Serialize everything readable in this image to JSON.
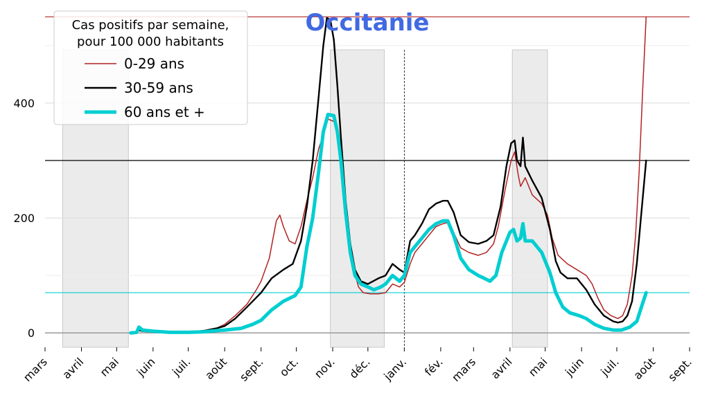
{
  "chart_data": {
    "type": "line",
    "title": "Occitanie",
    "title_color": "#4169e1",
    "legend": {
      "title_line1": "Cas positifs par semaine,",
      "title_line2": "pour 100 000 habitants",
      "placement": "top-left"
    },
    "xlabel": "",
    "ylabel": "",
    "x_range": [
      "2020-03-01",
      "2021-09-01"
    ],
    "ylim": [
      -25,
      560
    ],
    "y_ticks": [
      0,
      200,
      400
    ],
    "x_ticks": [
      {
        "date": "2020-03-01",
        "label": "mars"
      },
      {
        "date": "2020-04-01",
        "label": "avril"
      },
      {
        "date": "2020-05-01",
        "label": "mai"
      },
      {
        "date": "2020-06-01",
        "label": "juin"
      },
      {
        "date": "2020-07-01",
        "label": "juil."
      },
      {
        "date": "2020-08-01",
        "label": "août"
      },
      {
        "date": "2020-09-01",
        "label": "sept."
      },
      {
        "date": "2020-10-01",
        "label": "oct."
      },
      {
        "date": "2020-11-01",
        "label": "nov."
      },
      {
        "date": "2020-12-01",
        "label": "déc."
      },
      {
        "date": "2021-01-01",
        "label": "janv."
      },
      {
        "date": "2021-02-01",
        "label": "fév."
      },
      {
        "date": "2021-03-01",
        "label": "mars"
      },
      {
        "date": "2021-04-01",
        "label": "avril"
      },
      {
        "date": "2021-05-01",
        "label": "mai"
      },
      {
        "date": "2021-06-01",
        "label": "juin"
      },
      {
        "date": "2021-07-01",
        "label": "juil."
      },
      {
        "date": "2021-08-01",
        "label": "août"
      },
      {
        "date": "2021-09-01",
        "label": "sept."
      }
    ],
    "shaded_periods": [
      {
        "start": "2020-03-16",
        "end": "2020-05-11"
      },
      {
        "start": "2020-10-30",
        "end": "2020-12-15"
      },
      {
        "start": "2021-04-03",
        "end": "2021-05-03"
      }
    ],
    "vertical_marker": "2021-01-01",
    "reference_lines": [
      {
        "value": 550,
        "color": "#b22222"
      },
      {
        "value": 300,
        "color": "#000000"
      },
      {
        "value": 70,
        "color": "#00ced1"
      }
    ],
    "series": [
      {
        "name": "0-29 ans",
        "color": "#b22222",
        "points": [
          [
            "2020-05-13",
            0
          ],
          [
            "2020-05-18",
            1
          ],
          [
            "2020-05-20",
            7
          ],
          [
            "2020-05-23",
            3
          ],
          [
            "2020-06-01",
            2
          ],
          [
            "2020-06-15",
            1
          ],
          [
            "2020-07-01",
            1
          ],
          [
            "2020-07-15",
            3
          ],
          [
            "2020-07-25",
            8
          ],
          [
            "2020-08-01",
            15
          ],
          [
            "2020-08-10",
            30
          ],
          [
            "2020-08-20",
            50
          ],
          [
            "2020-08-28",
            75
          ],
          [
            "2020-09-01",
            90
          ],
          [
            "2020-09-08",
            130
          ],
          [
            "2020-09-14",
            195
          ],
          [
            "2020-09-17",
            205
          ],
          [
            "2020-09-20",
            185
          ],
          [
            "2020-09-25",
            160
          ],
          [
            "2020-09-30",
            155
          ],
          [
            "2020-10-05",
            185
          ],
          [
            "2020-10-10",
            230
          ],
          [
            "2020-10-15",
            270
          ],
          [
            "2020-10-20",
            320
          ],
          [
            "2020-10-25",
            350
          ],
          [
            "2020-10-28",
            372
          ],
          [
            "2020-11-02",
            368
          ],
          [
            "2020-11-05",
            345
          ],
          [
            "2020-11-08",
            300
          ],
          [
            "2020-11-12",
            230
          ],
          [
            "2020-11-16",
            160
          ],
          [
            "2020-11-19",
            110
          ],
          [
            "2020-11-23",
            80
          ],
          [
            "2020-11-27",
            70
          ],
          [
            "2020-12-03",
            68
          ],
          [
            "2020-12-10",
            68
          ],
          [
            "2020-12-16",
            70
          ],
          [
            "2020-12-22",
            85
          ],
          [
            "2020-12-28",
            80
          ],
          [
            "2021-01-01",
            88
          ],
          [
            "2021-01-06",
            120
          ],
          [
            "2021-01-10",
            140
          ],
          [
            "2021-01-16",
            155
          ],
          [
            "2021-01-22",
            170
          ],
          [
            "2021-01-28",
            185
          ],
          [
            "2021-02-03",
            190
          ],
          [
            "2021-02-07",
            192
          ],
          [
            "2021-02-12",
            175
          ],
          [
            "2021-02-18",
            148
          ],
          [
            "2021-02-25",
            140
          ],
          [
            "2021-03-05",
            135
          ],
          [
            "2021-03-12",
            140
          ],
          [
            "2021-03-18",
            155
          ],
          [
            "2021-03-22",
            185
          ],
          [
            "2021-03-28",
            250
          ],
          [
            "2021-04-02",
            300
          ],
          [
            "2021-04-05",
            315
          ],
          [
            "2021-04-08",
            275
          ],
          [
            "2021-04-10",
            255
          ],
          [
            "2021-04-14",
            270
          ],
          [
            "2021-04-20",
            240
          ],
          [
            "2021-04-28",
            225
          ],
          [
            "2021-05-03",
            205
          ],
          [
            "2021-05-07",
            165
          ],
          [
            "2021-05-12",
            135
          ],
          [
            "2021-05-20",
            120
          ],
          [
            "2021-05-28",
            110
          ],
          [
            "2021-06-05",
            100
          ],
          [
            "2021-06-10",
            85
          ],
          [
            "2021-06-15",
            60
          ],
          [
            "2021-06-20",
            40
          ],
          [
            "2021-06-26",
            30
          ],
          [
            "2021-07-02",
            25
          ],
          [
            "2021-07-06",
            30
          ],
          [
            "2021-07-10",
            50
          ],
          [
            "2021-07-14",
            100
          ],
          [
            "2021-07-17",
            170
          ],
          [
            "2021-07-20",
            280
          ],
          [
            "2021-07-23",
            420
          ],
          [
            "2021-07-26",
            550
          ]
        ]
      },
      {
        "name": "30-59 ans",
        "color": "#000000",
        "points": [
          [
            "2020-05-13",
            0
          ],
          [
            "2020-05-18",
            1
          ],
          [
            "2020-05-20",
            5
          ],
          [
            "2020-05-23",
            3
          ],
          [
            "2020-06-01",
            2
          ],
          [
            "2020-06-15",
            1
          ],
          [
            "2020-07-01",
            1
          ],
          [
            "2020-07-15",
            4
          ],
          [
            "2020-07-25",
            8
          ],
          [
            "2020-08-01",
            12
          ],
          [
            "2020-08-10",
            25
          ],
          [
            "2020-08-20",
            45
          ],
          [
            "2020-09-01",
            70
          ],
          [
            "2020-09-10",
            95
          ],
          [
            "2020-09-20",
            110
          ],
          [
            "2020-09-28",
            120
          ],
          [
            "2020-10-05",
            160
          ],
          [
            "2020-10-10",
            220
          ],
          [
            "2020-10-15",
            300
          ],
          [
            "2020-10-20",
            410
          ],
          [
            "2020-10-24",
            500
          ],
          [
            "2020-10-27",
            548
          ],
          [
            "2020-10-30",
            545
          ],
          [
            "2020-11-02",
            510
          ],
          [
            "2020-11-05",
            430
          ],
          [
            "2020-11-08",
            340
          ],
          [
            "2020-11-12",
            230
          ],
          [
            "2020-11-16",
            155
          ],
          [
            "2020-11-20",
            110
          ],
          [
            "2020-11-25",
            90
          ],
          [
            "2020-12-01",
            85
          ],
          [
            "2020-12-10",
            95
          ],
          [
            "2020-12-16",
            100
          ],
          [
            "2020-12-22",
            120
          ],
          [
            "2020-12-28",
            110
          ],
          [
            "2021-01-01",
            105
          ],
          [
            "2021-01-06",
            160
          ],
          [
            "2021-01-10",
            170
          ],
          [
            "2021-01-16",
            190
          ],
          [
            "2021-01-22",
            215
          ],
          [
            "2021-01-28",
            225
          ],
          [
            "2021-02-03",
            230
          ],
          [
            "2021-02-07",
            230
          ],
          [
            "2021-02-12",
            210
          ],
          [
            "2021-02-18",
            170
          ],
          [
            "2021-02-25",
            158
          ],
          [
            "2021-03-05",
            155
          ],
          [
            "2021-03-12",
            160
          ],
          [
            "2021-03-18",
            170
          ],
          [
            "2021-03-24",
            220
          ],
          [
            "2021-03-29",
            290
          ],
          [
            "2021-04-02",
            330
          ],
          [
            "2021-04-05",
            335
          ],
          [
            "2021-04-07",
            300
          ],
          [
            "2021-04-10",
            290
          ],
          [
            "2021-04-12",
            340
          ],
          [
            "2021-04-14",
            290
          ],
          [
            "2021-04-20",
            265
          ],
          [
            "2021-04-28",
            235
          ],
          [
            "2021-05-05",
            180
          ],
          [
            "2021-05-10",
            125
          ],
          [
            "2021-05-14",
            105
          ],
          [
            "2021-05-20",
            95
          ],
          [
            "2021-05-28",
            95
          ],
          [
            "2021-06-05",
            75
          ],
          [
            "2021-06-12",
            50
          ],
          [
            "2021-06-20",
            30
          ],
          [
            "2021-06-28",
            20
          ],
          [
            "2021-07-02",
            18
          ],
          [
            "2021-07-06",
            20
          ],
          [
            "2021-07-10",
            30
          ],
          [
            "2021-07-14",
            55
          ],
          [
            "2021-07-18",
            120
          ],
          [
            "2021-07-22",
            210
          ],
          [
            "2021-07-26",
            300
          ]
        ]
      },
      {
        "name": "60 ans et +",
        "color": "#00ced1",
        "points": [
          [
            "2020-05-13",
            0
          ],
          [
            "2020-05-18",
            1
          ],
          [
            "2020-05-20",
            10
          ],
          [
            "2020-05-23",
            5
          ],
          [
            "2020-06-01",
            3
          ],
          [
            "2020-06-15",
            1
          ],
          [
            "2020-07-01",
            1
          ],
          [
            "2020-07-15",
            2
          ],
          [
            "2020-07-25",
            4
          ],
          [
            "2020-08-01",
            5
          ],
          [
            "2020-08-15",
            8
          ],
          [
            "2020-08-25",
            15
          ],
          [
            "2020-09-01",
            22
          ],
          [
            "2020-09-10",
            40
          ],
          [
            "2020-09-20",
            55
          ],
          [
            "2020-09-30",
            65
          ],
          [
            "2020-10-05",
            80
          ],
          [
            "2020-10-10",
            150
          ],
          [
            "2020-10-15",
            200
          ],
          [
            "2020-10-20",
            280
          ],
          [
            "2020-10-24",
            350
          ],
          [
            "2020-10-28",
            380
          ],
          [
            "2020-11-02",
            378
          ],
          [
            "2020-11-05",
            350
          ],
          [
            "2020-11-08",
            300
          ],
          [
            "2020-11-12",
            210
          ],
          [
            "2020-11-16",
            140
          ],
          [
            "2020-11-20",
            100
          ],
          [
            "2020-11-25",
            85
          ],
          [
            "2020-12-01",
            80
          ],
          [
            "2020-12-06",
            75
          ],
          [
            "2020-12-12",
            80
          ],
          [
            "2020-12-16",
            85
          ],
          [
            "2020-12-22",
            100
          ],
          [
            "2020-12-28",
            90
          ],
          [
            "2021-01-01",
            100
          ],
          [
            "2021-01-06",
            140
          ],
          [
            "2021-01-10",
            150
          ],
          [
            "2021-01-16",
            165
          ],
          [
            "2021-01-22",
            180
          ],
          [
            "2021-01-28",
            190
          ],
          [
            "2021-02-03",
            195
          ],
          [
            "2021-02-07",
            195
          ],
          [
            "2021-02-12",
            170
          ],
          [
            "2021-02-18",
            130
          ],
          [
            "2021-02-25",
            110
          ],
          [
            "2021-03-05",
            100
          ],
          [
            "2021-03-10",
            95
          ],
          [
            "2021-03-15",
            90
          ],
          [
            "2021-03-20",
            100
          ],
          [
            "2021-03-25",
            140
          ],
          [
            "2021-04-01",
            175
          ],
          [
            "2021-04-04",
            180
          ],
          [
            "2021-04-07",
            160
          ],
          [
            "2021-04-10",
            165
          ],
          [
            "2021-04-12",
            190
          ],
          [
            "2021-04-14",
            160
          ],
          [
            "2021-04-20",
            160
          ],
          [
            "2021-04-28",
            140
          ],
          [
            "2021-05-05",
            105
          ],
          [
            "2021-05-10",
            70
          ],
          [
            "2021-05-16",
            45
          ],
          [
            "2021-05-22",
            35
          ],
          [
            "2021-05-30",
            30
          ],
          [
            "2021-06-05",
            25
          ],
          [
            "2021-06-12",
            15
          ],
          [
            "2021-06-20",
            8
          ],
          [
            "2021-06-28",
            5
          ],
          [
            "2021-07-05",
            5
          ],
          [
            "2021-07-12",
            10
          ],
          [
            "2021-07-18",
            20
          ],
          [
            "2021-07-22",
            45
          ],
          [
            "2021-07-26",
            70
          ]
        ]
      }
    ]
  }
}
